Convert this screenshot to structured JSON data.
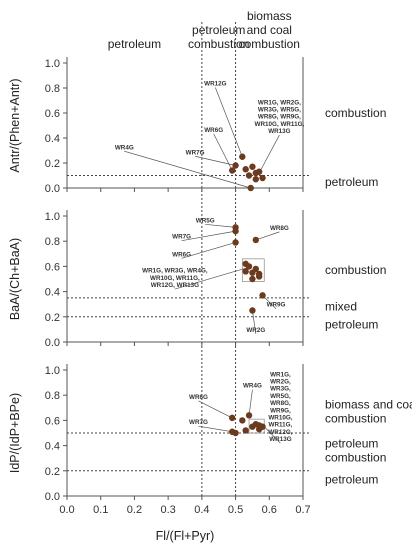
{
  "figure": {
    "xlabel": "Fl/(Fl+Pyr)",
    "xlim": [
      0.0,
      0.7
    ],
    "xticks": [
      "0.0",
      "0.1",
      "0.2",
      "0.3",
      "0.4",
      "0.5",
      "0.6",
      "0.7"
    ],
    "top_labels": [
      {
        "lines": [
          "petroleum"
        ],
        "x": 0.2
      },
      {
        "lines": [
          "petroleum",
          "combustion"
        ],
        "x": 0.45
      },
      {
        "lines": [
          "biomass",
          "and coal",
          "combustion"
        ],
        "x": 0.6
      }
    ],
    "vlines": [
      0.4,
      0.5
    ]
  },
  "chart_data": [
    {
      "type": "scatter",
      "ylabel": "Antr/(Phen+Antr)",
      "ylim": [
        0.0,
        1.0
      ],
      "yticks": [
        "0.0",
        "0.2",
        "0.4",
        "0.6",
        "0.8",
        "1.0"
      ],
      "hlines": [
        0.1
      ],
      "regions": [
        {
          "lines": [
            "combustion"
          ],
          "y": 0.6
        },
        {
          "lines": [
            "petroleum"
          ],
          "y": 0.05
        }
      ],
      "points": [
        [
          0.49,
          0.14
        ],
        [
          0.5,
          0.18
        ],
        [
          0.52,
          0.25
        ],
        [
          0.53,
          0.15
        ],
        [
          0.54,
          0.1
        ],
        [
          0.55,
          0.17
        ],
        [
          0.56,
          0.12
        ],
        [
          0.57,
          0.13
        ],
        [
          0.56,
          0.07
        ],
        [
          0.58,
          0.08
        ],
        [
          0.545,
          0.0
        ]
      ],
      "group_box": null,
      "annotations": [
        {
          "lines": [
            "WR12G"
          ],
          "anchor": [
            0.44,
            0.82
          ],
          "target": [
            0.52,
            0.25
          ],
          "align": "middle"
        },
        {
          "lines": [
            "WR6G"
          ],
          "anchor": [
            0.435,
            0.45
          ],
          "target": [
            0.49,
            0.14
          ],
          "align": "middle"
        },
        {
          "lines": [
            "WR7G"
          ],
          "anchor": [
            0.38,
            0.27
          ],
          "target": [
            0.5,
            0.18
          ],
          "align": "middle"
        },
        {
          "lines": [
            "WR4G"
          ],
          "anchor": [
            0.17,
            0.31
          ],
          "target": [
            0.545,
            0.0
          ],
          "align": "middle"
        },
        {
          "lines": [
            "WR1G, WR2G,",
            "WR3G, WR5G,",
            "WR8G, WR9G,",
            "WR10G, WR11G,",
            "WR13G"
          ],
          "anchor": [
            0.63,
            0.67
          ],
          "target": [
            0.57,
            0.12
          ],
          "align": "middle"
        }
      ]
    },
    {
      "type": "scatter",
      "ylabel": "BaA/(Ch+BaA)",
      "ylim": [
        0.0,
        1.0
      ],
      "yticks": [
        "0.0",
        "0.2",
        "0.4",
        "0.6",
        "0.8",
        "1.0"
      ],
      "hlines": [
        0.2,
        0.35
      ],
      "regions": [
        {
          "lines": [
            "combustion"
          ],
          "y": 0.57
        },
        {
          "lines": [
            "mixed"
          ],
          "y": 0.28
        },
        {
          "lines": [
            "petroleum"
          ],
          "y": 0.14
        }
      ],
      "points": [
        [
          0.5,
          0.91
        ],
        [
          0.5,
          0.88
        ],
        [
          0.5,
          0.79
        ],
        [
          0.56,
          0.81
        ],
        [
          0.58,
          0.37
        ],
        [
          0.55,
          0.25
        ],
        [
          0.53,
          0.62
        ],
        [
          0.54,
          0.6
        ],
        [
          0.55,
          0.55
        ],
        [
          0.56,
          0.58
        ],
        [
          0.57,
          0.54
        ],
        [
          0.57,
          0.52
        ],
        [
          0.55,
          0.5
        ],
        [
          0.53,
          0.56
        ]
      ],
      "group_box": {
        "x": [
          0.52,
          0.585
        ],
        "y": [
          0.48,
          0.66
        ]
      },
      "annotations": [
        {
          "lines": [
            "WR5G"
          ],
          "anchor": [
            0.41,
            0.95
          ],
          "target": [
            0.5,
            0.91
          ],
          "align": "middle"
        },
        {
          "lines": [
            "WR8G"
          ],
          "anchor": [
            0.63,
            0.89
          ],
          "target": [
            0.56,
            0.81
          ],
          "align": "middle"
        },
        {
          "lines": [
            "WR7G"
          ],
          "anchor": [
            0.34,
            0.82
          ],
          "target": [
            0.5,
            0.88
          ],
          "align": "middle"
        },
        {
          "lines": [
            "WR6G"
          ],
          "anchor": [
            0.34,
            0.68
          ],
          "target": [
            0.5,
            0.79
          ],
          "align": "middle"
        },
        {
          "lines": [
            "WR1G, WR3G, WR4G,",
            "WR10G, WR11G,",
            "WR12G, WR13G"
          ],
          "anchor": [
            0.32,
            0.55
          ],
          "target": [
            0.535,
            0.59
          ],
          "align": "middle"
        },
        {
          "lines": [
            "WR9G"
          ],
          "anchor": [
            0.62,
            0.28
          ],
          "target": [
            0.58,
            0.37
          ],
          "align": "middle"
        },
        {
          "lines": [
            "WR2G"
          ],
          "anchor": [
            0.56,
            0.08
          ],
          "target": [
            0.55,
            0.25
          ],
          "align": "middle"
        }
      ]
    },
    {
      "type": "scatter",
      "ylabel": "IdP/(IdP+BPe)",
      "ylim": [
        0.0,
        1.0
      ],
      "yticks": [
        "0.0",
        "0.2",
        "0.4",
        "0.6",
        "0.8",
        "1.0"
      ],
      "hlines": [
        0.2,
        0.5
      ],
      "regions": [
        {
          "lines": [
            "biomass and coal",
            "combustion"
          ],
          "y": 0.67
        },
        {
          "lines": [
            "petroleum",
            "combustion"
          ],
          "y": 0.36
        },
        {
          "lines": [
            "petroleum"
          ],
          "y": 0.13
        }
      ],
      "points": [
        [
          0.49,
          0.62
        ],
        [
          0.49,
          0.51
        ],
        [
          0.5,
          0.5
        ],
        [
          0.52,
          0.6
        ],
        [
          0.53,
          0.52
        ],
        [
          0.54,
          0.64
        ],
        [
          0.55,
          0.55
        ],
        [
          0.56,
          0.57
        ],
        [
          0.57,
          0.56
        ],
        [
          0.58,
          0.55
        ],
        [
          0.57,
          0.53
        ]
      ],
      "group_box": {
        "x": [
          0.54,
          0.585
        ],
        "y": [
          0.5,
          0.61
        ]
      },
      "annotations": [
        {
          "lines": [
            "WR6G"
          ],
          "anchor": [
            0.39,
            0.77
          ],
          "target": [
            0.49,
            0.62
          ],
          "align": "middle"
        },
        {
          "lines": [
            "WR7G"
          ],
          "anchor": [
            0.39,
            0.57
          ],
          "target": [
            0.49,
            0.51
          ],
          "align": "middle"
        },
        {
          "lines": [
            "WR4G"
          ],
          "anchor": [
            0.55,
            0.86
          ],
          "target": [
            0.54,
            0.64
          ],
          "align": "middle"
        },
        {
          "lines": [
            "WR1G,",
            "WR2G,",
            "WR3G,",
            "WR5G,",
            "WR8G,",
            "WR9G,",
            "WR10G,",
            "WR11G,",
            "WR12G,",
            "WR13G"
          ],
          "anchor": [
            0.633,
            0.95
          ],
          "target": [
            0.585,
            0.55
          ],
          "align": "middle"
        }
      ]
    }
  ]
}
